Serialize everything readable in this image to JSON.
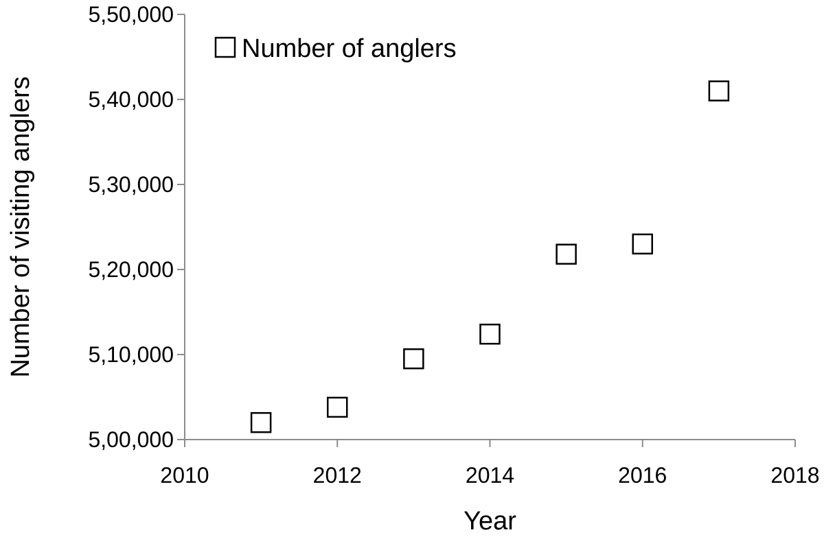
{
  "chart_data": {
    "type": "scatter",
    "xlabel": "Year",
    "ylabel": "Number of visiting anglers",
    "xlim": [
      2010,
      2018
    ],
    "ylim": [
      500000,
      550000
    ],
    "x_ticks": [
      2010,
      2012,
      2014,
      2016,
      2018
    ],
    "x_tick_labels": [
      "2010",
      "2012",
      "2014",
      "2016",
      "2018"
    ],
    "y_ticks": [
      500000,
      510000,
      520000,
      530000,
      540000,
      550000
    ],
    "y_tick_labels": [
      "5,00,000",
      "5,10,000",
      "5,20,000",
      "5,30,000",
      "5,40,000",
      "5,50,000"
    ],
    "legend_position": "top-left",
    "grid": false,
    "series": [
      {
        "name": "Number of anglers",
        "marker": "hollow-square",
        "points": [
          {
            "x": 2011,
            "y": 502000
          },
          {
            "x": 2012,
            "y": 503800
          },
          {
            "x": 2013,
            "y": 509500
          },
          {
            "x": 2014,
            "y": 512400
          },
          {
            "x": 2015,
            "y": 521800
          },
          {
            "x": 2016,
            "y": 523000
          },
          {
            "x": 2017,
            "y": 541000
          }
        ]
      }
    ],
    "colors": {
      "axis": "#8c8c8c",
      "marker_stroke": "#000000",
      "marker_fill": "#ffffff",
      "text": "#000000"
    }
  }
}
